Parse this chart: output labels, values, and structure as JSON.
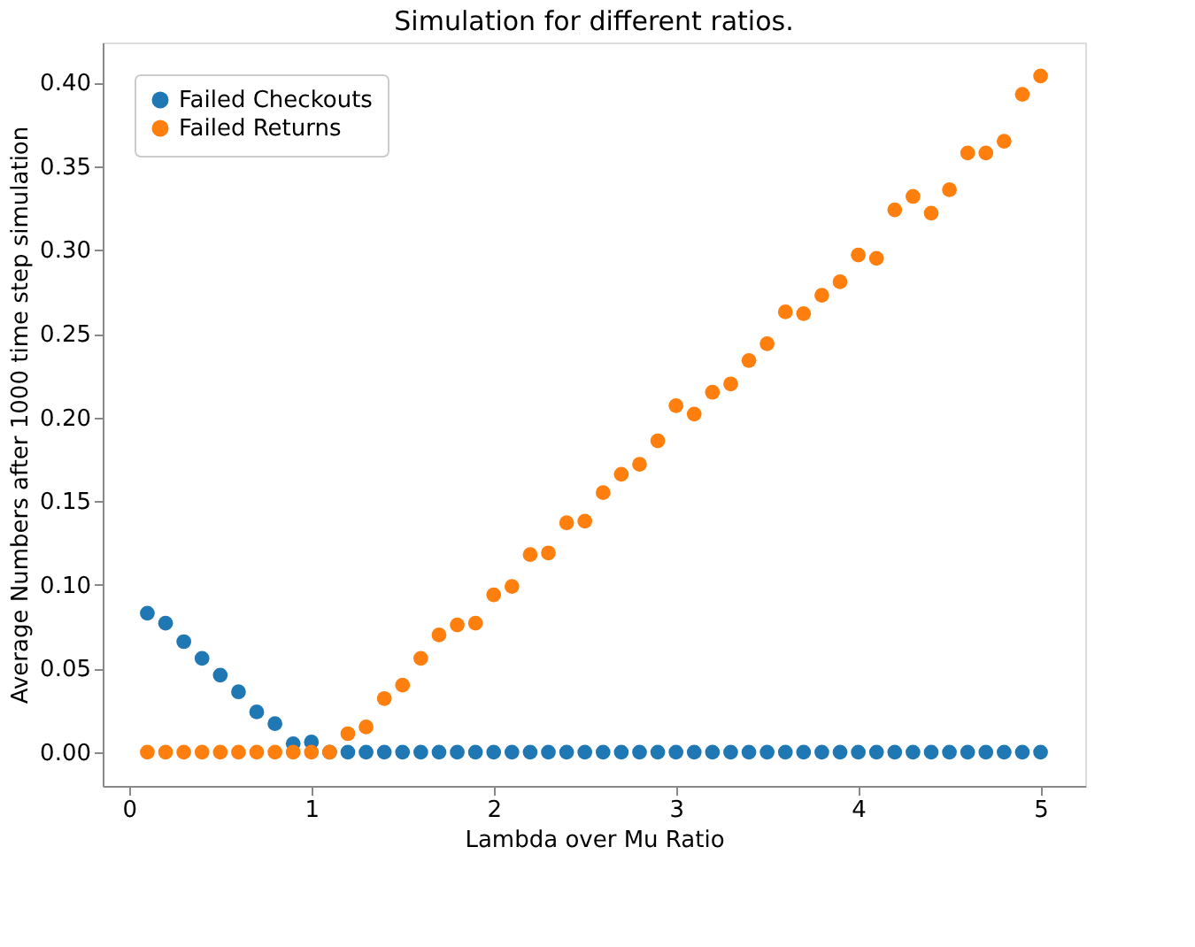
{
  "chart_data": {
    "type": "scatter",
    "title": "Simulation for different ratios.",
    "xlabel": "Lambda over Mu Ratio",
    "ylabel": "Average Numbers after 1000 time step simulation",
    "x": [
      0.1,
      0.2,
      0.3,
      0.4,
      0.5,
      0.6,
      0.7,
      0.8,
      0.9,
      1.0,
      1.1,
      1.2,
      1.3,
      1.4,
      1.5,
      1.6,
      1.7,
      1.8,
      1.9,
      2.0,
      2.1,
      2.2,
      2.3,
      2.4,
      2.5,
      2.6,
      2.7,
      2.8,
      2.9,
      3.0,
      3.1,
      3.2,
      3.3,
      3.4,
      3.5,
      3.6,
      3.7,
      3.8,
      3.9,
      4.0,
      4.1,
      4.2,
      4.3,
      4.4,
      4.5,
      4.6,
      4.7,
      4.8,
      4.9,
      5.0
    ],
    "series": [
      {
        "name": "Failed Checkouts",
        "color": "#1f77b4",
        "values": [
          0.083,
          0.077,
          0.066,
          0.056,
          0.046,
          0.036,
          0.024,
          0.017,
          0.005,
          0.006,
          0,
          0,
          0,
          0,
          0,
          0,
          0,
          0,
          0,
          0,
          0,
          0,
          0,
          0,
          0,
          0,
          0,
          0,
          0,
          0,
          0,
          0,
          0,
          0,
          0,
          0,
          0,
          0,
          0,
          0,
          0,
          0,
          0,
          0,
          0,
          0,
          0,
          0,
          0,
          0
        ]
      },
      {
        "name": "Failed Returns",
        "color": "#ff7f0e",
        "values": [
          0,
          0,
          0,
          0,
          0,
          0,
          0,
          0,
          0,
          0,
          0,
          0.011,
          0.015,
          0.032,
          0.04,
          0.056,
          0.07,
          0.076,
          0.077,
          0.094,
          0.099,
          0.118,
          0.119,
          0.137,
          0.138,
          0.155,
          0.166,
          0.172,
          0.186,
          0.207,
          0.202,
          0.215,
          0.22,
          0.234,
          0.244,
          0.263,
          0.262,
          0.273,
          0.281,
          0.297,
          0.295,
          0.324,
          0.332,
          0.322,
          0.336,
          0.358,
          0.358,
          0.365,
          0.393,
          0.404
        ]
      }
    ],
    "xlim": [
      -0.145,
      5.245
    ],
    "xticks": [
      0,
      1,
      2,
      3,
      4,
      5
    ],
    "ylim": [
      -0.0202,
      0.424
    ],
    "yticks": [
      {
        "value": 0,
        "label": "0.00"
      },
      {
        "value": 0.05,
        "label": "0.05"
      },
      {
        "value": 0.1,
        "label": "0.10"
      },
      {
        "value": 0.15,
        "label": "0.15"
      },
      {
        "value": 0.2,
        "label": "0.20"
      },
      {
        "value": 0.25,
        "label": "0.25"
      },
      {
        "value": 0.3,
        "label": "0.30"
      },
      {
        "value": 0.35,
        "label": "0.35"
      },
      {
        "value": 0.4,
        "label": "0.40"
      }
    ],
    "grid": false,
    "legend": "top left",
    "marker": "circle"
  }
}
